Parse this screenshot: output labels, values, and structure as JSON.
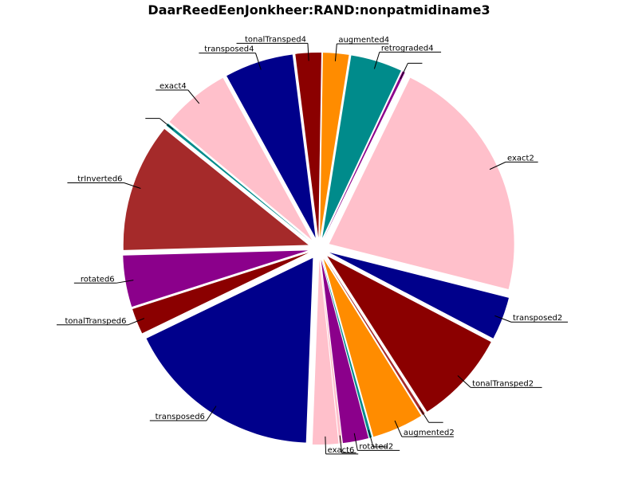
{
  "chart_data": {
    "type": "pie",
    "title": "DaarReedEenJonkheer:RAND:nonpatmidiname3",
    "slices": [
      {
        "label": "exact2",
        "value": 29,
        "color": "#ffc0cb"
      },
      {
        "label": "transposed2",
        "value": 5,
        "color": "#00008b"
      },
      {
        "label": "tonalTransped2",
        "value": 11,
        "color": "#8b0000"
      },
      {
        "label": "",
        "value": 0.3,
        "color": "#a52a2a"
      },
      {
        "label": "augmented2",
        "value": 6,
        "color": "#ff8c00"
      },
      {
        "label": "",
        "value": 0.3,
        "color": "#008b8b"
      },
      {
        "label": "rotated2",
        "value": 3,
        "color": "#8b008b"
      },
      {
        "label": "",
        "value": 0.3,
        "color": "#ffc0cb"
      },
      {
        "label": "exact6",
        "value": 3,
        "color": "#ffc0cb"
      },
      {
        "label": "transposed6",
        "value": 23,
        "color": "#00008b"
      },
      {
        "label": "tonalTransped6",
        "value": 3,
        "color": "#8b0000"
      },
      {
        "label": "rotated6",
        "value": 6,
        "color": "#8b008b"
      },
      {
        "label": "trInverted6",
        "value": 15,
        "color": "#a52a2a"
      },
      {
        "label": "",
        "value": 0.3,
        "color": "#008b8b"
      },
      {
        "label": "exact4",
        "value": 8,
        "color": "#ffc0cb"
      },
      {
        "label": "transposed4",
        "value": 8,
        "color": "#00008b"
      },
      {
        "label": "tonalTransped4",
        "value": 3,
        "color": "#8b0000"
      },
      {
        "label": "augmented4",
        "value": 3,
        "color": "#ff8c00"
      },
      {
        "label": "retrograded4",
        "value": 6,
        "color": "#008b8b"
      },
      {
        "label": "",
        "value": 0.3,
        "color": "#8b008b"
      }
    ],
    "start_angle_deg": 64,
    "direction": "clockwise",
    "legend": "none"
  }
}
